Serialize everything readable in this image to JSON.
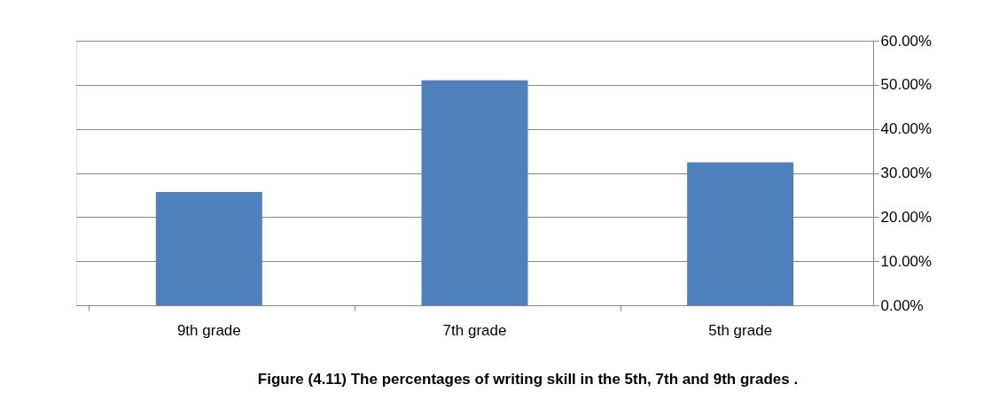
{
  "chart_data": {
    "type": "bar",
    "title": "Figure (4.11) The percentages of writing skill in the 5th, 7th and 9th grades .",
    "categories": [
      "9th grade",
      "7th grade",
      "5th grade"
    ],
    "values": [
      25.7,
      51.0,
      32.4
    ],
    "color": "#4f81bd",
    "ylim": [
      0,
      60
    ],
    "yticks": [
      {
        "value": 0,
        "label": "0.00%"
      },
      {
        "value": 10,
        "label": "10.00%"
      },
      {
        "value": 20,
        "label": "20.00%"
      },
      {
        "value": 30,
        "label": "30.00%"
      },
      {
        "value": 40,
        "label": "40.00%"
      },
      {
        "value": 50,
        "label": "50.00%"
      },
      {
        "value": 60,
        "label": "60.00%"
      }
    ],
    "grid": "y"
  }
}
